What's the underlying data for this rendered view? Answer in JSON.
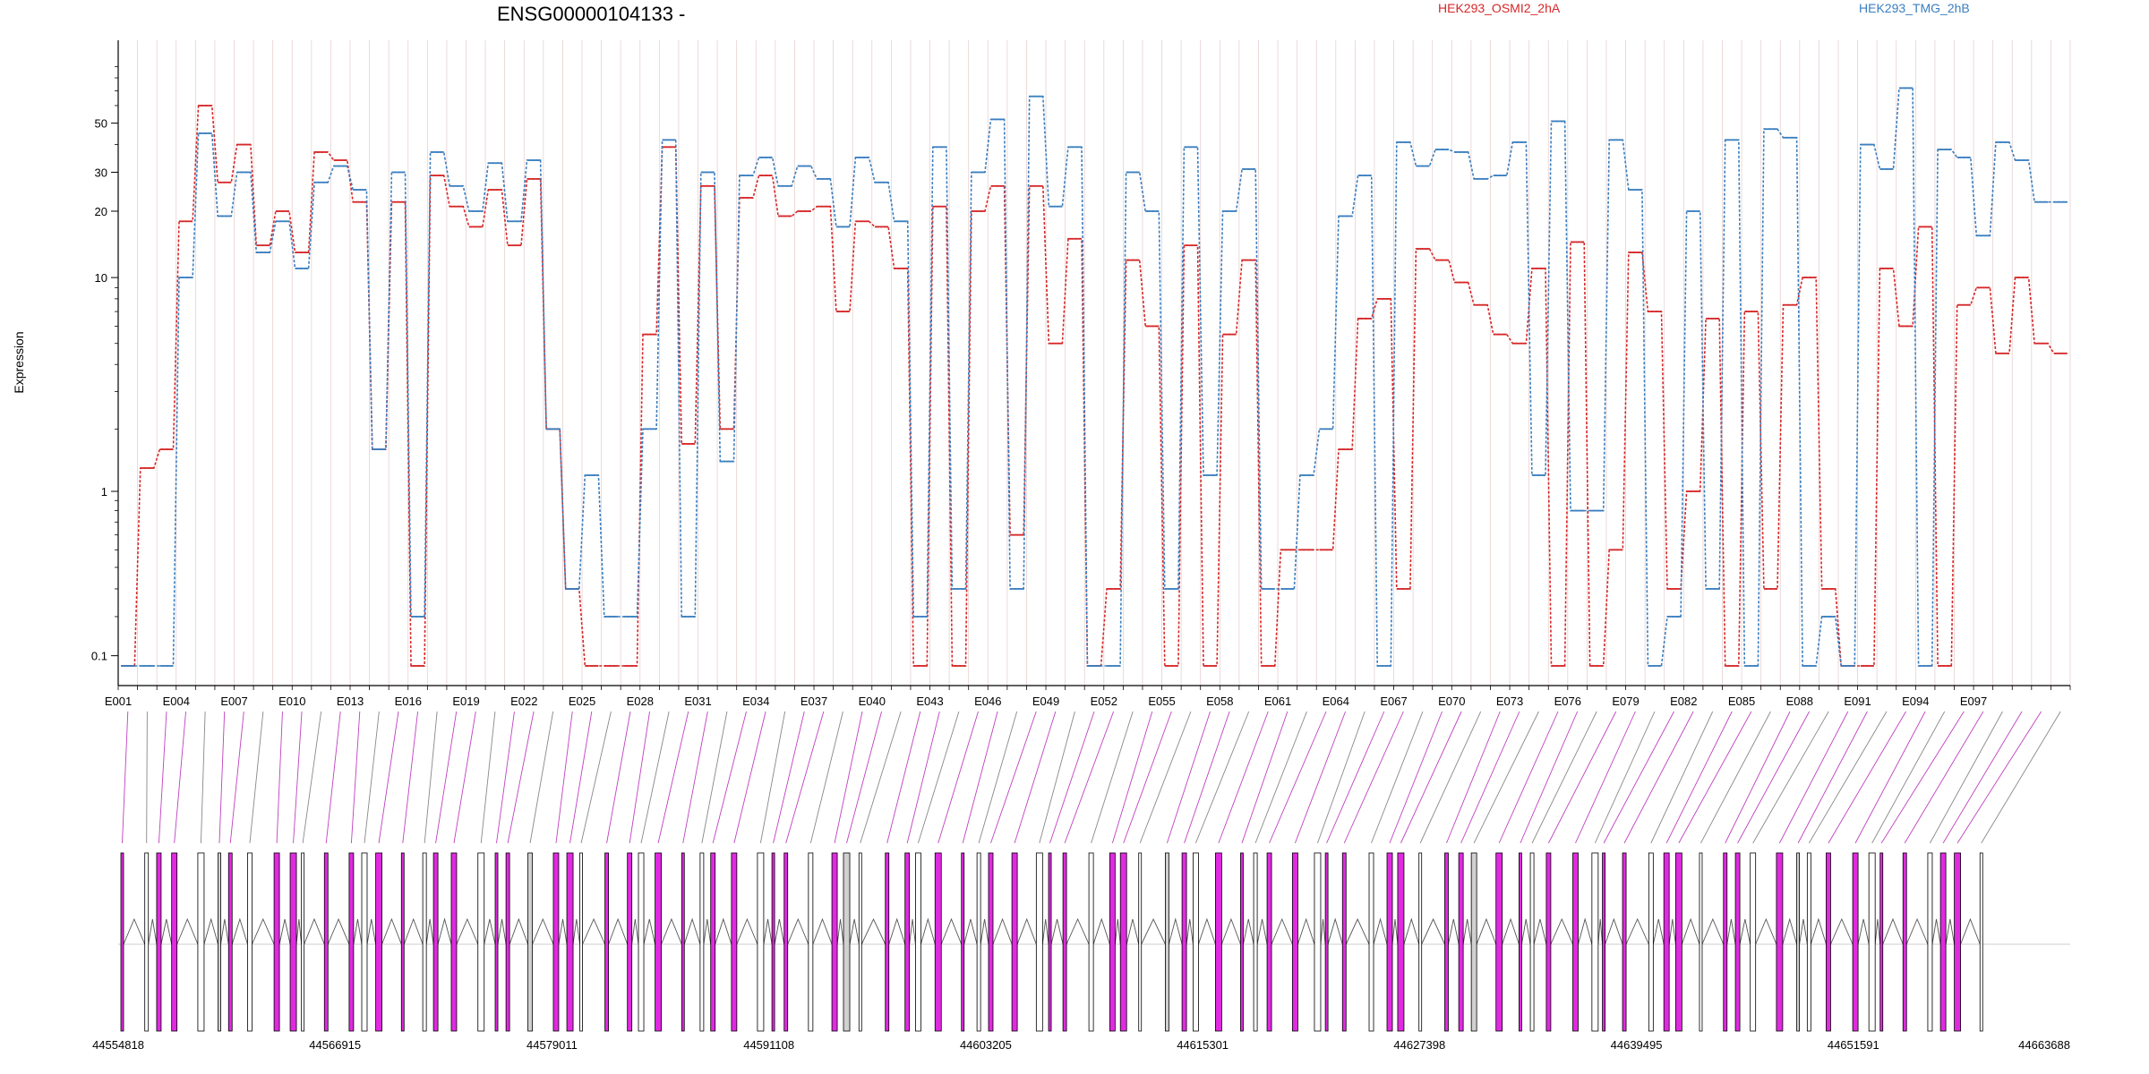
{
  "chart_data": {
    "type": "line",
    "title": "ENSG00000104133 -",
    "ylabel": "Expression",
    "y_scale": "log(x+0.1)",
    "ylim": [
      0.08,
      100
    ],
    "y_ticks": [
      {
        "label": "0.1",
        "value": 0.1
      },
      {
        "label": "1",
        "value": 1
      },
      {
        "label": "10",
        "value": 10
      },
      {
        "label": "20",
        "value": 20
      },
      {
        "label": "30",
        "value": 30
      },
      {
        "label": "50",
        "value": 50
      }
    ],
    "x_tick_labels": [
      "E001",
      "E004",
      "E007",
      "E010",
      "E013",
      "E016",
      "E019",
      "E022",
      "E025",
      "E028",
      "E031",
      "E034",
      "E037",
      "E040",
      "E043",
      "E046",
      "E049",
      "E052",
      "E055",
      "E058",
      "E061",
      "E064",
      "E067",
      "E070",
      "E073",
      "E076",
      "E079",
      "E082",
      "E085",
      "E088",
      "E091",
      "E094",
      "E097"
    ],
    "grid": true,
    "legend_position": "top",
    "series": [
      {
        "name": "HEK293_OSMI2_2hA",
        "color": "#d62728",
        "values": [
          0.08,
          1.3,
          1.6,
          18,
          60,
          27,
          40,
          14,
          20,
          13,
          37,
          34,
          22,
          1.6,
          22,
          0.08,
          29,
          21,
          17,
          25,
          14,
          28,
          2,
          0.3,
          0.08,
          0.08,
          0.08,
          5.5,
          39,
          1.7,
          26,
          2,
          23,
          29,
          19,
          20,
          21,
          7,
          18,
          17,
          11,
          0.08,
          21,
          0.08,
          20,
          26,
          0.6,
          26,
          5,
          15,
          0.08,
          0.3,
          12,
          6,
          0.08,
          14,
          0.08,
          5.5,
          12,
          0.08,
          0.5,
          0.5,
          0.5,
          1.6,
          6.5,
          8,
          0.3,
          13.5,
          12,
          9.5,
          7.5,
          5.5,
          5,
          11,
          0.08,
          14.5,
          0.08,
          0.5,
          13,
          7,
          0.3,
          1,
          6.5,
          0.08,
          7,
          0.3,
          7.5,
          10,
          0.3,
          0.08,
          0.08,
          11,
          6,
          17,
          0.08,
          7.5,
          9,
          4.5,
          10,
          5,
          4.5
        ]
      },
      {
        "name": "HEK293_TMG_2hB",
        "color": "#3a7ebf",
        "values": [
          0.08,
          0.08,
          0.08,
          10,
          45,
          19,
          30,
          13,
          18,
          11,
          27,
          32,
          25,
          1.6,
          30,
          0.2,
          37,
          26,
          20,
          33,
          18,
          34,
          2,
          0.3,
          1.2,
          0.2,
          0.2,
          2,
          42,
          0.2,
          30,
          1.4,
          29,
          35,
          26,
          32,
          28,
          17,
          35,
          27,
          18,
          0.2,
          39,
          0.3,
          30,
          52,
          0.3,
          66,
          21,
          39,
          0.08,
          0.08,
          30,
          20,
          0.3,
          39,
          1.2,
          20,
          31,
          0.3,
          0.3,
          1.2,
          2,
          19,
          29,
          0.08,
          41,
          32,
          38,
          37,
          28,
          29,
          41,
          1.2,
          51,
          0.8,
          0.8,
          42,
          25,
          0.08,
          0.2,
          20,
          0.3,
          42,
          0.08,
          47,
          43,
          0.08,
          0.2,
          0.08,
          40,
          31,
          72,
          0.08,
          38,
          35,
          15.5,
          41,
          34,
          22,
          22
        ]
      }
    ]
  },
  "gene_model": {
    "genomic_coordinates": [
      "44554818",
      "44566915",
      "44579011",
      "44591108",
      "44603205",
      "44615301",
      "44627398",
      "44639495",
      "44651591",
      "44663688"
    ]
  },
  "colors": {
    "series_a": "#d62728",
    "series_b": "#3a7ebf",
    "exon_highlight": "#e02ae0",
    "exon_shaded": "#d0d0d0",
    "grid": "#e8d0d0",
    "connector_highlight": "#c040c0",
    "connector_plain": "#888888"
  }
}
